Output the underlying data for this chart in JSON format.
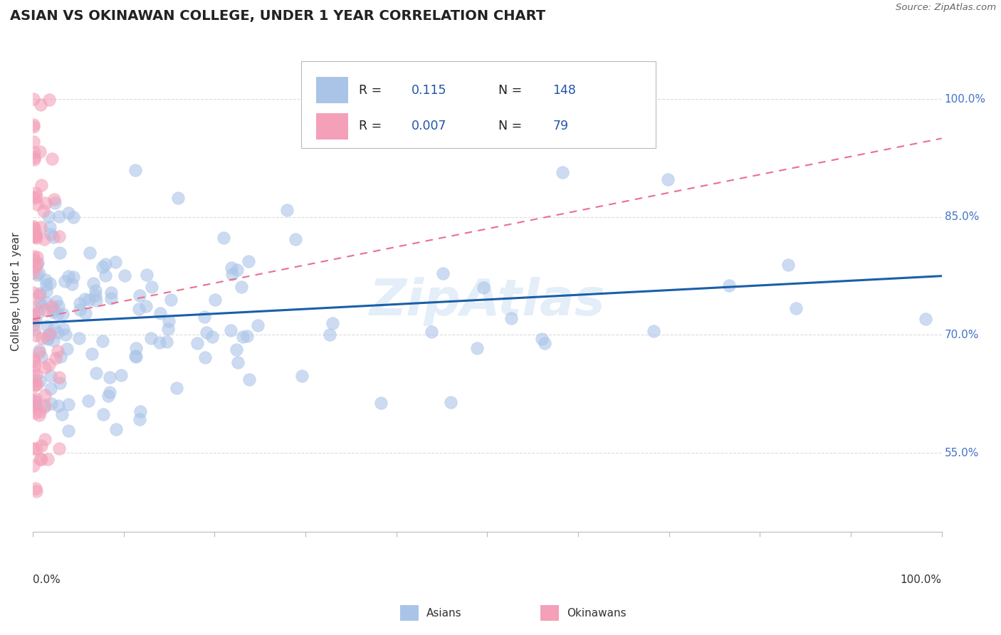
{
  "title": "ASIAN VS OKINAWAN COLLEGE, UNDER 1 YEAR CORRELATION CHART",
  "source_text": "Source: ZipAtlas.com",
  "ylabel": "College, Under 1 year",
  "ylabel_ticks": [
    "55.0%",
    "70.0%",
    "85.0%",
    "100.0%"
  ],
  "ylabel_tick_vals": [
    0.55,
    0.7,
    0.85,
    1.0
  ],
  "watermark": "ZipAtlas",
  "legend_asian_r": "0.115",
  "legend_asian_n": "148",
  "legend_okinawan_r": "0.007",
  "legend_okinawan_n": "79",
  "asian_color": "#aac4e8",
  "okinawan_color": "#f4a0b8",
  "trendline_asian_color": "#1a5fa8",
  "trendline_okinawan_color": "#e87090",
  "background_color": "#ffffff",
  "title_color": "#222222",
  "title_fontsize": 14,
  "xlim": [
    0.0,
    1.0
  ],
  "ylim": [
    0.45,
    1.06
  ],
  "grid_color": "#cccccc",
  "right_label_color": "#4472c4",
  "legend_text_color": "#222222",
  "legend_value_color": "#2255aa"
}
